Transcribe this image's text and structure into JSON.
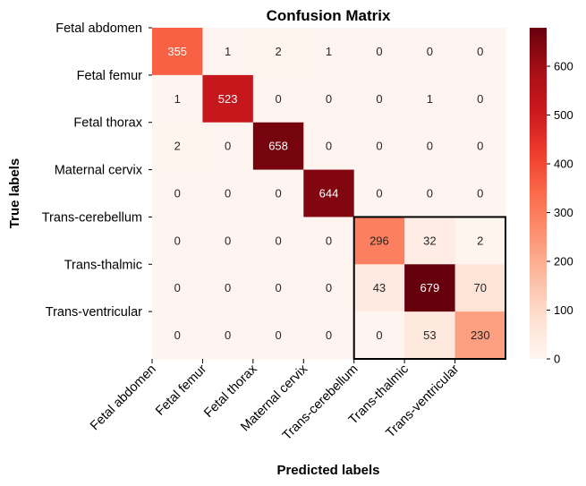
{
  "chart_data": {
    "type": "heatmap",
    "title": "Confusion Matrix",
    "xlabel": "Predicted labels",
    "ylabel": "True labels",
    "x_categories": [
      "Fetal abdomen",
      "Fetal femur",
      "Fetal thorax",
      "Maternal cervix",
      "Trans-cerebellum",
      "Trans-thalmic",
      "Trans-ventricular"
    ],
    "y_categories": [
      "Fetal abdomen",
      "Fetal femur",
      "Fetal thorax",
      "Maternal cervix",
      "Trans-cerebellum",
      "Trans-thalmic",
      "Trans-ventricular"
    ],
    "values": [
      [
        355,
        1,
        2,
        1,
        0,
        0,
        0
      ],
      [
        1,
        523,
        0,
        0,
        0,
        1,
        0
      ],
      [
        2,
        0,
        658,
        0,
        0,
        0,
        0
      ],
      [
        0,
        0,
        0,
        644,
        0,
        0,
        0
      ],
      [
        0,
        0,
        0,
        0,
        296,
        32,
        2
      ],
      [
        0,
        0,
        0,
        0,
        43,
        679,
        70
      ],
      [
        0,
        0,
        0,
        0,
        0,
        53,
        230
      ]
    ],
    "colormap": "Reds",
    "vmin": 0,
    "vmax": 679,
    "colorbar_ticks": [
      0,
      100,
      200,
      300,
      400,
      500,
      600
    ],
    "highlight_box": {
      "rows": [
        4,
        6
      ],
      "cols": [
        4,
        6
      ],
      "color": "#000000"
    },
    "grid": false
  }
}
